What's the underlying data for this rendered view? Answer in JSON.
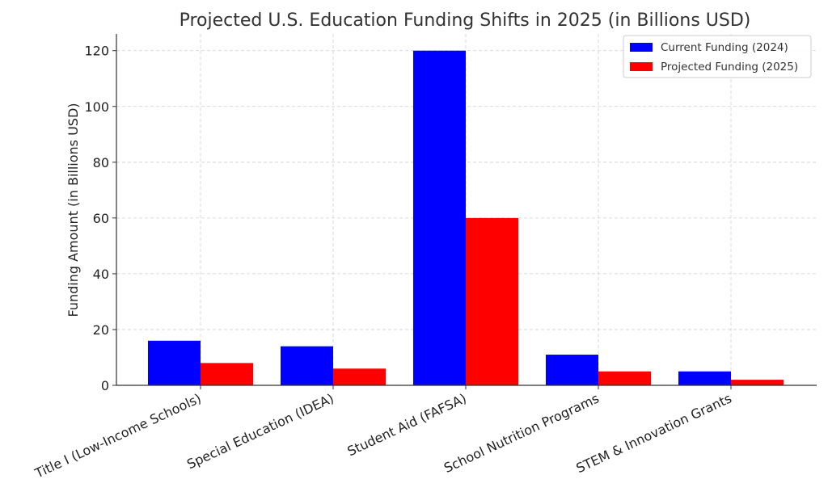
{
  "chart_data": {
    "type": "bar",
    "title": "Projected U.S. Education Funding Shifts in 2025 (in Billions USD)",
    "xlabel": "",
    "ylabel": "Funding Amount (in Billions USD)",
    "categories": [
      "Title I (Low-Income Schools)",
      "Special Education (IDEA)",
      "Student Aid (FAFSA)",
      "School Nutrition Programs",
      "STEM & Innovation Grants"
    ],
    "series": [
      {
        "name": "Current Funding (2024)",
        "color": "#0000ff",
        "values": [
          16,
          14,
          120,
          11,
          5
        ]
      },
      {
        "name": "Projected Funding (2025)",
        "color": "#ff0000",
        "values": [
          8,
          6,
          60,
          5,
          2
        ]
      }
    ],
    "ylim": [
      0,
      126
    ],
    "yticks": [
      0,
      20,
      40,
      60,
      80,
      100,
      120
    ],
    "grid": true,
    "legend_position": "top-right"
  }
}
